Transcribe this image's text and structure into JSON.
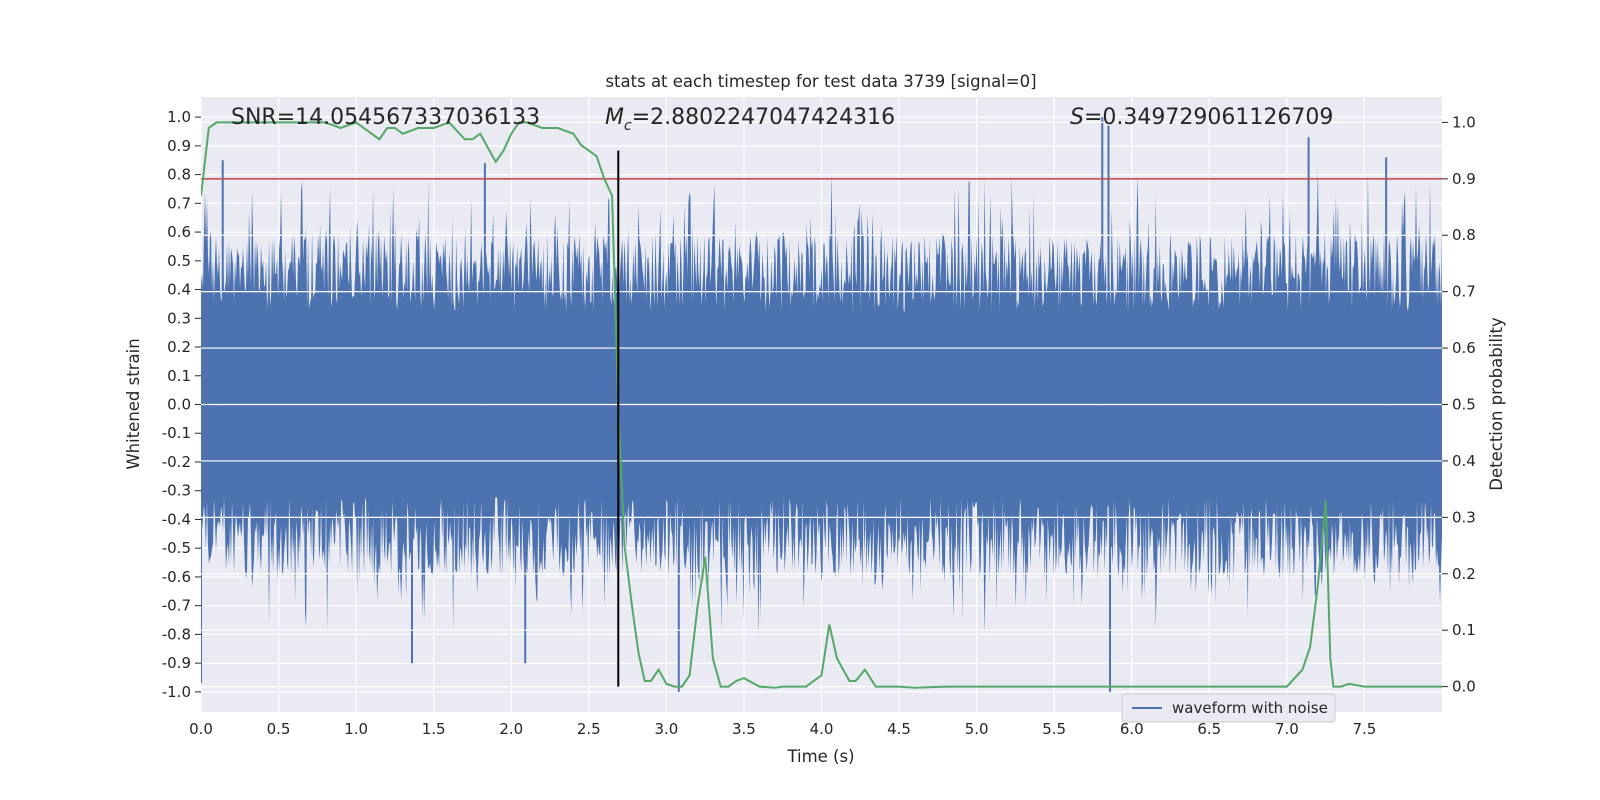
{
  "chart_data": {
    "type": "line",
    "title": "stats at each timestep for test data 3739 [signal=0]",
    "xlabel": "Time (s)",
    "ylabel": "Whitened strain",
    "y2label": "Detection probability",
    "xlim": [
      0.0,
      8.0
    ],
    "ylim": [
      -1.07,
      1.07
    ],
    "y2lim": [
      -0.045,
      1.045
    ],
    "x_ticks": [
      "0.0",
      "0.5",
      "1.0",
      "1.5",
      "2.0",
      "2.5",
      "3.0",
      "3.5",
      "4.0",
      "4.5",
      "5.0",
      "5.5",
      "6.0",
      "6.5",
      "7.0",
      "7.5"
    ],
    "y_ticks": [
      "-1.0",
      "-0.9",
      "-0.8",
      "-0.7",
      "-0.6",
      "-0.5",
      "-0.4",
      "-0.3",
      "-0.2",
      "-0.1",
      "0.0",
      "0.1",
      "0.2",
      "0.3",
      "0.4",
      "0.5",
      "0.6",
      "0.7",
      "0.8",
      "0.9",
      "1.0"
    ],
    "y2_ticks": [
      "0.0",
      "0.1",
      "0.2",
      "0.3",
      "0.4",
      "0.5",
      "0.6",
      "0.7",
      "0.8",
      "0.9",
      "1.0"
    ],
    "grid": true,
    "annotations": {
      "snr": "SNR=14.054567337036133",
      "mc_symbol": "M",
      "mc_sub": "c",
      "mc_value": "=2.8802247047424316",
      "s_symbol": "S",
      "s_value": "=0.349729061126709"
    },
    "vertical_line_x": 2.69,
    "threshold_y2": 0.9,
    "series": [
      {
        "name": "waveform with noise",
        "color": "#4c72b0",
        "axis": "left",
        "x_range": [
          0.0,
          8.0
        ],
        "typical_amplitude": 0.42,
        "noted_peaks": [
          {
            "x": 0.14,
            "y": 0.85
          },
          {
            "x": 1.83,
            "y": 0.84
          },
          {
            "x": 5.81,
            "y": 1.0
          },
          {
            "x": 5.85,
            "y": 0.97
          },
          {
            "x": 7.14,
            "y": 0.93
          },
          {
            "x": 7.64,
            "y": 0.86
          },
          {
            "x": 1.36,
            "y": -0.9
          },
          {
            "x": 2.09,
            "y": -0.9
          },
          {
            "x": 3.08,
            "y": -1.0
          },
          {
            "x": 5.86,
            "y": -1.0
          },
          {
            "x": 0.0,
            "y": -0.97
          }
        ]
      },
      {
        "name": "",
        "color": "#55a868",
        "axis": "right",
        "x": [
          0.0,
          0.05,
          0.1,
          0.2,
          0.3,
          0.4,
          0.5,
          0.6,
          0.7,
          0.8,
          0.9,
          1.0,
          1.1,
          1.15,
          1.2,
          1.25,
          1.3,
          1.4,
          1.5,
          1.6,
          1.7,
          1.75,
          1.8,
          1.86,
          1.9,
          1.95,
          2.0,
          2.05,
          2.1,
          2.2,
          2.3,
          2.4,
          2.45,
          2.5,
          2.55,
          2.6,
          2.65,
          2.69,
          2.73,
          2.78,
          2.82,
          2.86,
          2.9,
          2.95,
          3.0,
          3.05,
          3.1,
          3.15,
          3.2,
          3.25,
          3.3,
          3.35,
          3.4,
          3.45,
          3.5,
          3.6,
          3.7,
          3.75,
          3.8,
          3.9,
          4.0,
          4.05,
          4.1,
          4.18,
          4.22,
          4.28,
          4.35,
          4.4,
          4.45,
          4.5,
          4.6,
          4.8,
          5.0,
          5.2,
          5.4,
          5.6,
          5.8,
          5.85,
          5.9,
          6.0,
          6.2,
          6.4,
          6.6,
          6.8,
          6.9,
          7.0,
          7.1,
          7.15,
          7.2,
          7.25,
          7.28,
          7.3,
          7.35,
          7.4,
          7.5,
          7.6,
          7.7,
          7.8,
          7.9,
          8.0
        ],
        "y": [
          0.87,
          0.99,
          1.0,
          1.0,
          1.0,
          1.0,
          1.0,
          1.0,
          1.0,
          1.0,
          0.99,
          1.0,
          0.98,
          0.97,
          0.99,
          0.99,
          0.98,
          0.99,
          0.99,
          1.0,
          0.97,
          0.97,
          0.98,
          0.95,
          0.93,
          0.95,
          0.98,
          1.0,
          1.0,
          0.99,
          0.99,
          0.98,
          0.96,
          0.95,
          0.94,
          0.9,
          0.87,
          0.49,
          0.25,
          0.14,
          0.06,
          0.01,
          0.01,
          0.03,
          0.005,
          0.0,
          0.0,
          0.02,
          0.14,
          0.23,
          0.05,
          0.0,
          0.0,
          0.01,
          0.015,
          0.0,
          -0.002,
          0.0,
          0.0,
          0.0,
          0.02,
          0.11,
          0.05,
          0.01,
          0.01,
          0.03,
          0.0,
          0.0,
          0.0,
          0.0,
          -0.002,
          0.0,
          0.0,
          0.0,
          0.0,
          0.0,
          0.0,
          0.0,
          0.0,
          0.0,
          0.0,
          0.0,
          0.0,
          0.0,
          0.0,
          0.0,
          0.03,
          0.07,
          0.18,
          0.33,
          0.05,
          0.0,
          0.0,
          0.005,
          0.0,
          0.0,
          0.0,
          0.0,
          0.0,
          0.0
        ]
      },
      {
        "name": "",
        "color": "#c44e52",
        "axis": "right",
        "x": [
          0.0,
          8.0
        ],
        "y": [
          0.9,
          0.9
        ]
      }
    ],
    "legend": {
      "position": "lower-right",
      "entries": [
        "waveform with noise"
      ]
    }
  }
}
